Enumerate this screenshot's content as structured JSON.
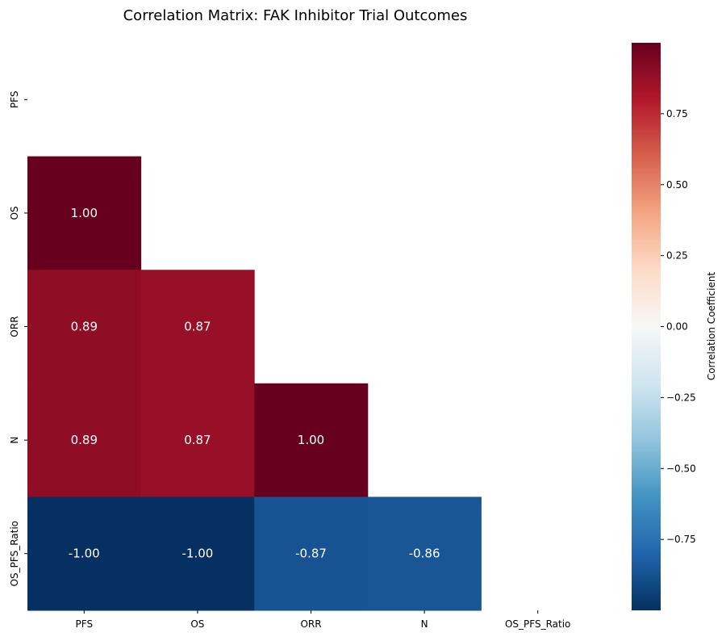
{
  "chart_data": {
    "type": "heatmap",
    "title": "Correlation Matrix: FAK Inhibitor Trial Outcomes",
    "x_categories": [
      "PFS",
      "OS",
      "ORR",
      "N",
      "OS_PFS_Ratio"
    ],
    "y_categories": [
      "PFS",
      "OS",
      "ORR",
      "N",
      "OS_PFS_Ratio"
    ],
    "mask": "upper-triangle-including-diagonal",
    "cells": [
      {
        "row": "OS",
        "col": "PFS",
        "value": 1.0,
        "label": "1.00"
      },
      {
        "row": "ORR",
        "col": "PFS",
        "value": 0.89,
        "label": "0.89"
      },
      {
        "row": "ORR",
        "col": "OS",
        "value": 0.87,
        "label": "0.87"
      },
      {
        "row": "N",
        "col": "PFS",
        "value": 0.89,
        "label": "0.89"
      },
      {
        "row": "N",
        "col": "OS",
        "value": 0.87,
        "label": "0.87"
      },
      {
        "row": "N",
        "col": "ORR",
        "value": 1.0,
        "label": "1.00"
      },
      {
        "row": "OS_PFS_Ratio",
        "col": "PFS",
        "value": -1.0,
        "label": "-1.00"
      },
      {
        "row": "OS_PFS_Ratio",
        "col": "OS",
        "value": -1.0,
        "label": "-1.00"
      },
      {
        "row": "OS_PFS_Ratio",
        "col": "ORR",
        "value": -0.87,
        "label": "-0.87"
      },
      {
        "row": "OS_PFS_Ratio",
        "col": "N",
        "value": -0.86,
        "label": "-0.86"
      }
    ],
    "colormap": "RdBu_r",
    "colorbar": {
      "label": "Correlation Coefficient",
      "vmin": -1.0,
      "vmax": 1.0,
      "ticks": [
        -0.75,
        -0.5,
        -0.25,
        0.0,
        0.25,
        0.5,
        0.75
      ],
      "tick_labels": [
        "−0.75",
        "−0.50",
        "−0.25",
        "0.00",
        "0.25",
        "0.50",
        "0.75"
      ],
      "placement": "right"
    },
    "grid": false,
    "legend": "none"
  }
}
